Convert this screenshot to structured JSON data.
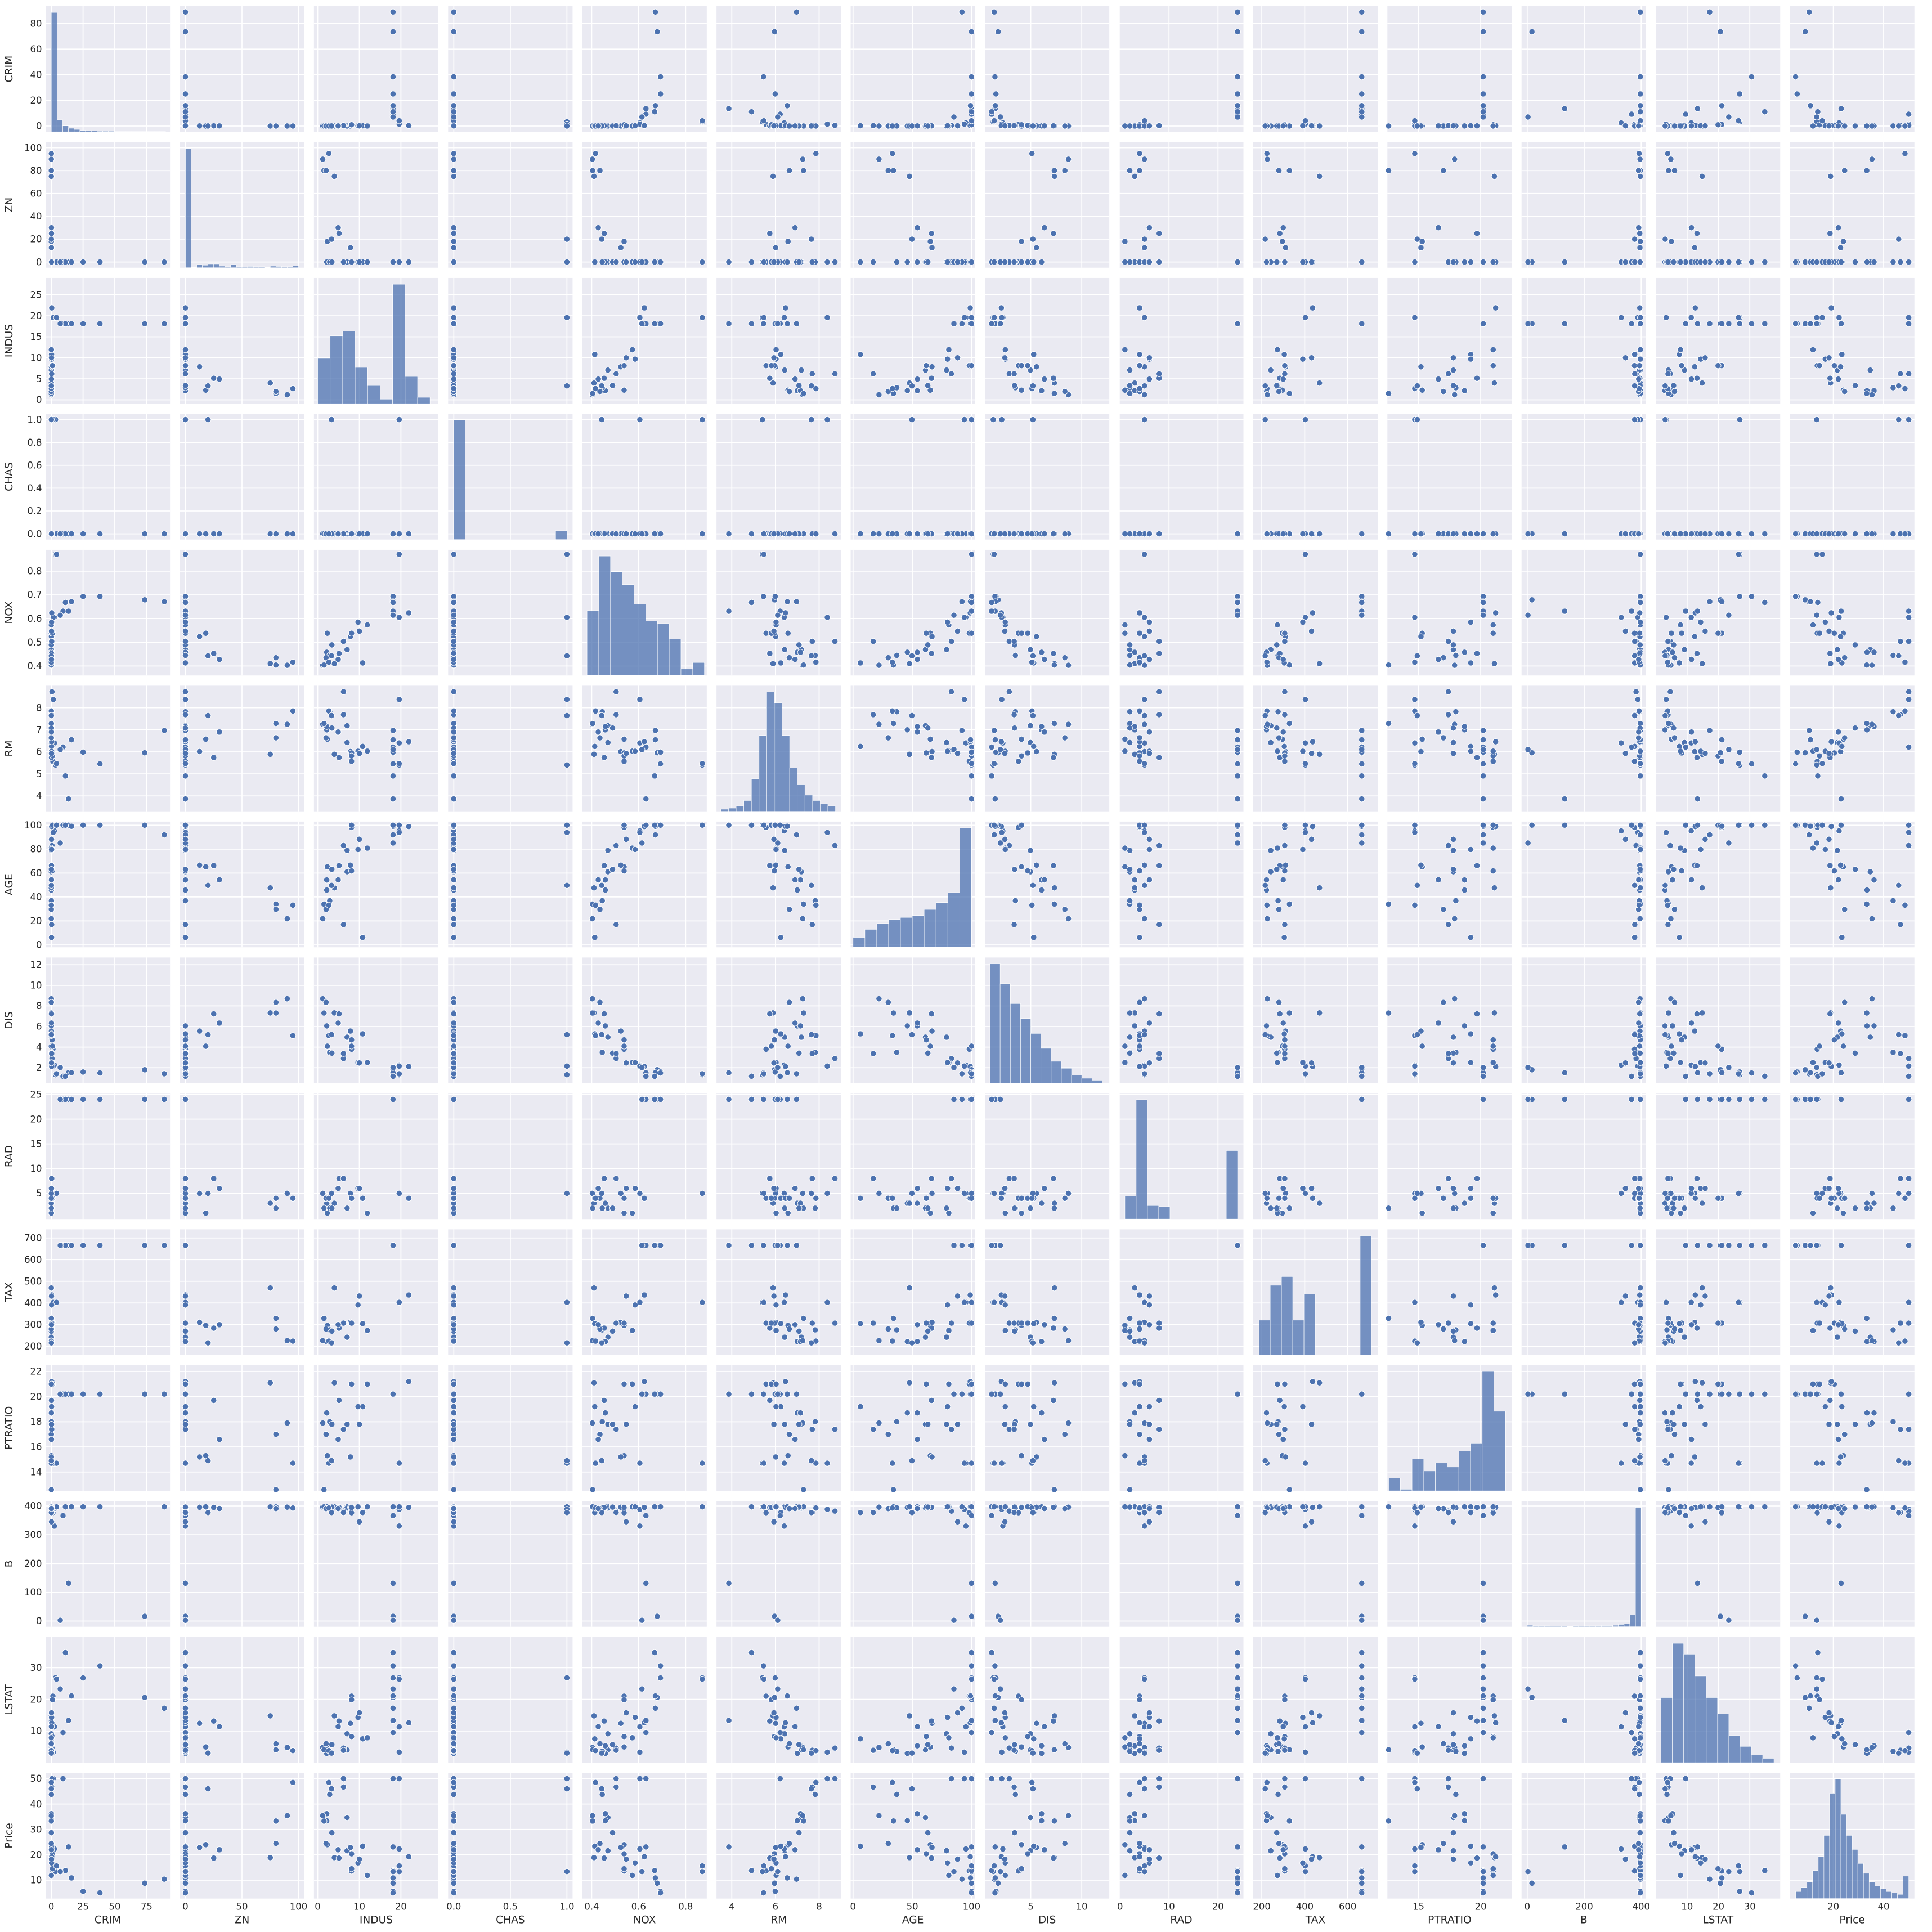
{
  "chart_data": {
    "type": "scatter",
    "color": "#4c72b0",
    "grid": true,
    "variables": [
      {
        "name": "CRIM",
        "lim": [
          -4.5,
          93.5
        ],
        "xticks": [
          0,
          25,
          50,
          75
        ],
        "yticks": [
          0,
          20,
          40,
          60,
          80
        ],
        "hist": {
          "bins": [
            0,
            4.5,
            9,
            13.5,
            18,
            22.5,
            27,
            31.5,
            36,
            40.5,
            45,
            49.5,
            54,
            58.5,
            63,
            67.5,
            72,
            76.5,
            81,
            85.5,
            90
          ],
          "counts": [
            400,
            40,
            20,
            12,
            8,
            5,
            4,
            3,
            2,
            2,
            2,
            1,
            1,
            1,
            1,
            1,
            1,
            1,
            1,
            1
          ]
        }
      },
      {
        "name": "ZN",
        "lim": [
          -5,
          105
        ],
        "xticks": [
          0,
          50,
          100
        ],
        "yticks": [
          0,
          20,
          40,
          60,
          80,
          100
        ],
        "hist": {
          "bins": [
            0,
            5,
            10,
            15,
            20,
            25,
            30,
            35,
            40,
            45,
            50,
            55,
            60,
            65,
            70,
            75,
            80,
            85,
            90,
            95,
            100
          ],
          "counts": [
            372,
            1,
            10,
            8,
            12,
            12,
            5,
            3,
            10,
            3,
            2,
            4,
            3,
            3,
            1,
            5,
            4,
            3,
            3,
            6
          ]
        }
      },
      {
        "name": "INDUS",
        "lim": [
          -0.9,
          29
        ],
        "xticks": [
          0,
          10,
          20
        ],
        "yticks": [
          0,
          5,
          10,
          15,
          20,
          25
        ],
        "hist": {
          "bins": [
            0,
            3,
            6,
            9,
            12,
            15,
            18,
            21,
            24,
            27
          ],
          "counts": [
            50,
            75,
            80,
            40,
            20,
            5,
            132,
            30,
            7
          ]
        }
      },
      {
        "name": "CHAS",
        "lim": [
          -0.05,
          1.05
        ],
        "xticks": [
          {
            "value": 0,
            "label": "0.0"
          },
          0.5,
          {
            "value": 1,
            "label": "1.0"
          }
        ],
        "yticks": [
          {
            "value": 0,
            "label": "0.0"
          },
          0.2,
          0.4,
          0.6,
          0.8,
          {
            "value": 1,
            "label": "1.0"
          }
        ],
        "hist": {
          "bins": [
            0,
            0.1,
            0.2,
            0.3,
            0.4,
            0.5,
            0.6,
            0.7,
            0.8,
            0.9,
            1.0
          ],
          "counts": [
            471,
            0,
            0,
            0,
            0,
            0,
            0,
            0,
            0,
            35
          ]
        }
      },
      {
        "name": "NOX",
        "lim": [
          0.36,
          0.89
        ],
        "xticks": [
          0.4,
          0.6,
          0.8
        ],
        "yticks": [
          0.4,
          0.5,
          0.6,
          0.7,
          0.8
        ],
        "hist": {
          "bins": [
            0.38,
            0.43,
            0.48,
            0.53,
            0.58,
            0.63,
            0.68,
            0.73,
            0.78,
            0.83,
            0.88
          ],
          "counts": [
            50,
            92,
            80,
            70,
            55,
            42,
            40,
            28,
            5,
            10
          ]
        }
      },
      {
        "name": "RM",
        "lim": [
          3.3,
          9.0
        ],
        "xticks": [
          4,
          6,
          8
        ],
        "yticks": [
          4,
          5,
          6,
          7,
          8
        ],
        "hist": {
          "bins": [
            3.5,
            3.85,
            4.2,
            4.55,
            4.9,
            5.25,
            5.6,
            5.95,
            6.3,
            6.65,
            7.0,
            7.35,
            7.7,
            8.05,
            8.4,
            8.75
          ],
          "counts": [
            2,
            3,
            5,
            10,
            30,
            70,
            110,
            100,
            70,
            40,
            25,
            15,
            10,
            7,
            5
          ]
        }
      },
      {
        "name": "AGE",
        "lim": [
          -2,
          103
        ],
        "xticks": [
          0,
          50,
          100
        ],
        "yticks": [
          0,
          20,
          40,
          60,
          80,
          100
        ],
        "hist": {
          "bins": [
            0,
            10,
            20,
            30,
            40,
            50,
            60,
            70,
            80,
            90,
            100
          ],
          "counts": [
            10,
            18,
            24,
            28,
            30,
            32,
            38,
            45,
            55,
            120
          ]
        }
      },
      {
        "name": "DIS",
        "lim": [
          0.5,
          12.7
        ],
        "xticks": [
          5,
          10
        ],
        "yticks": [
          2,
          4,
          6,
          8,
          10,
          12
        ],
        "hist": {
          "bins": [
            1,
            2,
            3,
            4,
            5,
            6,
            7,
            8,
            9,
            10,
            11,
            12
          ],
          "counts": [
            120,
            100,
            80,
            65,
            50,
            35,
            22,
            15,
            8,
            5,
            3
          ]
        }
      },
      {
        "name": "RAD",
        "lim": [
          -0.2,
          25.2
        ],
        "xticks": [
          0,
          10,
          20
        ],
        "yticks": [
          5,
          10,
          15,
          20,
          25
        ],
        "hist": {
          "bins": [
            1,
            3.3,
            5.6,
            7.9,
            10.2,
            12.5,
            14.8,
            17.1,
            19.4,
            21.7,
            24
          ],
          "counts": [
            44,
            230,
            26,
            24,
            0,
            0,
            0,
            0,
            0,
            132
          ]
        }
      },
      {
        "name": "TAX",
        "lim": [
          160,
          740
        ],
        "xticks": [
          200,
          400,
          600
        ],
        "yticks": [
          200,
          300,
          400,
          500,
          600,
          700
        ],
        "hist": {
          "bins": [
            187,
            239.4,
            291.8,
            344.2,
            396.6,
            449,
            501.4,
            553.8,
            606.2,
            658.6,
            711
          ],
          "counts": [
            40,
            80,
            90,
            40,
            70,
            0,
            0,
            0,
            0,
            137
          ]
        }
      },
      {
        "name": "PTRATIO",
        "lim": [
          12.5,
          22.5
        ],
        "xticks": [
          15,
          20
        ],
        "yticks": [
          14,
          16,
          18,
          20,
          22
        ],
        "hist": {
          "bins": [
            12.6,
            13.54,
            14.48,
            15.42,
            16.36,
            17.3,
            18.24,
            19.18,
            20.12,
            21.06,
            22
          ],
          "counts": [
            16,
            2,
            40,
            25,
            35,
            30,
            50,
            60,
            150,
            100
          ]
        }
      },
      {
        "name": "B",
        "lim": [
          -20,
          417
        ],
        "xticks": [
          0,
          200,
          400
        ],
        "yticks": [
          0,
          100,
          200,
          300,
          400
        ],
        "hist": {
          "bins": [
            0,
            20,
            40,
            60,
            80,
            100,
            120,
            140,
            160,
            180,
            200,
            220,
            240,
            260,
            280,
            300,
            320,
            340,
            360,
            380,
            400
          ],
          "counts": [
            5,
            3,
            3,
            3,
            2,
            2,
            2,
            1,
            3,
            2,
            3,
            3,
            3,
            4,
            4,
            5,
            8,
            10,
            40,
            400
          ]
        }
      },
      {
        "name": "LSTAT",
        "lim": [
          0,
          39.7
        ],
        "xticks": [
          10,
          20,
          30
        ],
        "yticks": [
          10,
          20,
          30
        ],
        "hist": {
          "bins": [
            1.7,
            5.3,
            8.9,
            12.5,
            16.1,
            19.7,
            23.3,
            26.9,
            30.5,
            34.1,
            37.7
          ],
          "counts": [
            60,
            110,
            100,
            80,
            60,
            45,
            25,
            15,
            7,
            4
          ]
        }
      },
      {
        "name": "Price",
        "lim": [
          2.75,
          52.25
        ],
        "xticks": [
          20,
          40
        ],
        "yticks": [
          10,
          20,
          30,
          40,
          50
        ],
        "hist": {
          "bins": [
            5,
            7.25,
            9.5,
            11.75,
            14,
            16.25,
            18.5,
            20.75,
            23,
            25.25,
            27.5,
            29.75,
            32,
            34.25,
            36.5,
            38.75,
            41,
            43.25,
            45.5,
            47.75,
            50
          ],
          "counts": [
            5,
            8,
            12,
            20,
            30,
            45,
            75,
            85,
            60,
            45,
            35,
            25,
            18,
            12,
            9,
            7,
            5,
            4,
            3,
            16
          ]
        }
      }
    ],
    "rows": [
      [
        0.00632,
        18,
        2.31,
        0,
        0.538,
        6.575,
        65.2,
        4.09,
        1,
        296,
        15.3,
        396.9,
        4.98,
        24.0
      ],
      [
        0.02731,
        0,
        7.07,
        0,
        0.469,
        6.421,
        78.9,
        4.9671,
        2,
        242,
        17.8,
        396.9,
        9.14,
        21.6
      ],
      [
        0.02729,
        0,
        7.07,
        0,
        0.469,
        7.185,
        61.1,
        4.9671,
        2,
        242,
        17.8,
        392.83,
        4.03,
        34.7
      ],
      [
        0.03237,
        0,
        2.18,
        0,
        0.458,
        6.998,
        45.8,
        6.0622,
        3,
        222,
        18.7,
        394.63,
        2.94,
        33.4
      ],
      [
        0.06905,
        0,
        2.18,
        0,
        0.458,
        7.147,
        54.2,
        6.0622,
        3,
        222,
        18.7,
        396.9,
        5.33,
        36.2
      ],
      [
        0.08829,
        12.5,
        7.87,
        0,
        0.524,
        6.012,
        66.6,
        5.5605,
        5,
        311,
        15.2,
        395.6,
        12.43,
        22.9
      ],
      [
        0.62976,
        0,
        8.14,
        0,
        0.538,
        5.949,
        61.8,
        4.7075,
        4,
        307,
        21,
        396.9,
        8.26,
        20.4
      ],
      [
        1.25179,
        0,
        8.14,
        0,
        0.538,
        5.57,
        98.1,
        3.7979,
        4,
        307,
        21,
        376.57,
        21.02,
        13.6
      ],
      [
        0.01311,
        90,
        1.22,
        0,
        0.403,
        7.249,
        21.9,
        8.6966,
        5,
        226,
        17.9,
        395.93,
        4.81,
        35.4
      ],
      [
        0.0136,
        75,
        4,
        0,
        0.41,
        5.888,
        47.6,
        7.3197,
        3,
        469,
        21.1,
        396.9,
        14.8,
        18.9
      ],
      [
        0.04011,
        80,
        1.52,
        0,
        0.404,
        7.287,
        34.1,
        7.309,
        2,
        329,
        12.6,
        396.9,
        4.08,
        33.3
      ],
      [
        3.32105,
        0,
        19.58,
        1,
        0.871,
        5.403,
        100,
        1.3216,
        5,
        403,
        14.7,
        396.9,
        26.82,
        13.4
      ],
      [
        2.44953,
        0,
        19.58,
        0,
        0.605,
        6.402,
        95.2,
        2.2625,
        5,
        403,
        14.7,
        330.04,
        11.32,
        22.3
      ],
      [
        1.51902,
        0,
        19.58,
        1,
        0.605,
        8.375,
        93.9,
        2.162,
        5,
        403,
        14.7,
        388.45,
        3.32,
        50
      ],
      [
        0.52693,
        0,
        6.2,
        0,
        0.504,
        8.725,
        83,
        2.8944,
        8,
        307,
        17.4,
        382,
        4.63,
        50
      ],
      [
        0.08187,
        0,
        2.89,
        0,
        0.445,
        7.82,
        36.9,
        3.4952,
        2,
        276,
        18,
        393.53,
        3.57,
        43.8
      ],
      [
        0.19539,
        0,
        10.81,
        0,
        0.413,
        6.245,
        6.2,
        5.2873,
        4,
        305,
        19.2,
        377.17,
        7.54,
        23.4
      ],
      [
        0.14932,
        25,
        5.13,
        0,
        0.453,
        5.741,
        66.2,
        7.2254,
        8,
        284,
        19.7,
        395.11,
        13.15,
        18.7
      ],
      [
        0.34006,
        0,
        21.89,
        0,
        0.624,
        6.458,
        98.9,
        2.1185,
        4,
        437,
        21.2,
        395.04,
        12.6,
        19.2
      ],
      [
        0.9884,
        0,
        8.14,
        0,
        0.538,
        5.813,
        100,
        4.0952,
        4,
        307,
        21,
        394.54,
        19.88,
        14.5
      ],
      [
        13.5222,
        0,
        18.1,
        0,
        0.631,
        3.863,
        100,
        1.5106,
        24,
        666,
        20.2,
        131.42,
        13.33,
        23.1
      ],
      [
        9.2323,
        0,
        18.1,
        0,
        0.631,
        6.216,
        100,
        1.1691,
        24,
        666,
        20.2,
        366.15,
        9.53,
        50
      ],
      [
        88.9762,
        0,
        18.1,
        0,
        0.671,
        6.968,
        91.9,
        1.4165,
        24,
        666,
        20.2,
        396.9,
        17.21,
        10.4
      ],
      [
        73.5341,
        0,
        18.1,
        0,
        0.679,
        5.957,
        100,
        1.8026,
        24,
        666,
        20.2,
        16.45,
        20.62,
        8.8
      ],
      [
        25.0461,
        0,
        18.1,
        0,
        0.693,
        5.987,
        100,
        1.5888,
        24,
        666,
        20.2,
        396.9,
        26.77,
        5.6
      ],
      [
        38.3518,
        0,
        18.1,
        0,
        0.693,
        5.453,
        100,
        1.4896,
        24,
        666,
        20.2,
        396.9,
        30.59,
        5
      ],
      [
        15.8744,
        0,
        18.1,
        0,
        0.671,
        6.545,
        99.1,
        1.5192,
        24,
        666,
        20.2,
        396.9,
        21.08,
        10.9
      ],
      [
        11.1081,
        0,
        18.1,
        0,
        0.668,
        4.906,
        100,
        1.1742,
        24,
        666,
        20.2,
        396.9,
        34.77,
        13.8
      ],
      [
        4.0974,
        0,
        19.58,
        0,
        0.871,
        5.468,
        100,
        1.4118,
        5,
        403,
        14.7,
        396.9,
        26.42,
        15.6
      ],
      [
        0.04741,
        0,
        11.93,
        0,
        0.573,
        6.03,
        80.8,
        2.505,
        1,
        273,
        21,
        396.9,
        7.88,
        11.9
      ],
      [
        0.22438,
        0,
        9.69,
        0,
        0.585,
        6.027,
        79.7,
        2.4982,
        6,
        391,
        19.2,
        396.9,
        14.33,
        16.8
      ],
      [
        0.05302,
        0,
        3.41,
        0,
        0.489,
        7.079,
        63.1,
        3.4145,
        2,
        270,
        17.8,
        396.06,
        5.7,
        28.7
      ],
      [
        0.01501,
        80,
        2.01,
        0,
        0.435,
        6.635,
        29.7,
        8.344,
        4,
        280,
        17,
        390.94,
        5.99,
        24.5
      ],
      [
        0.29819,
        0,
        6.2,
        0,
        0.504,
        7.686,
        17,
        3.3751,
        8,
        307,
        17.4,
        377.51,
        3.92,
        46.7
      ],
      [
        7.05042,
        0,
        18.1,
        0,
        0.614,
        6.103,
        85.1,
        2.0218,
        24,
        666,
        20.2,
        2.52,
        23.29,
        13.4
      ],
      [
        0.0351,
        95,
        2.68,
        0,
        0.4161,
        7.853,
        33.2,
        5.118,
        4,
        224,
        14.7,
        392.78,
        3.81,
        48.5
      ],
      [
        0.17134,
        0,
        10.01,
        0,
        0.547,
        5.928,
        88.2,
        2.4631,
        6,
        432,
        17.8,
        344.91,
        15.76,
        18.3
      ],
      [
        0.06129,
        20,
        3.33,
        1,
        0.4429,
        7.645,
        49.7,
        5.2119,
        5,
        216,
        14.9,
        377.07,
        3.01,
        46
      ],
      [
        0.11329,
        30,
        4.93,
        0,
        0.428,
        6.897,
        54.3,
        6.3361,
        6,
        300,
        16.6,
        391.25,
        11.38,
        22
      ]
    ]
  }
}
